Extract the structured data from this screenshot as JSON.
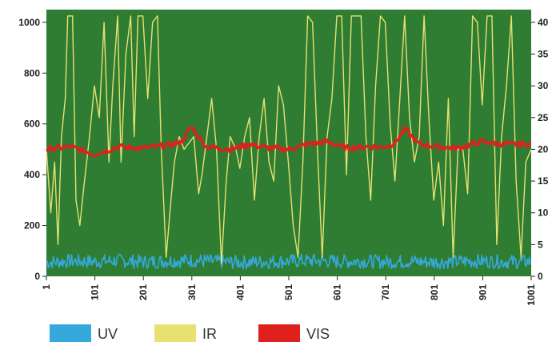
{
  "chart_data": {
    "type": "line",
    "title": "",
    "xlabel": "",
    "ylabel": "",
    "xlim": [
      1,
      1001
    ],
    "ylim_left": [
      0,
      1050
    ],
    "ylim_right": [
      0,
      42
    ],
    "left_ticks": [
      0,
      200,
      400,
      600,
      800,
      1000
    ],
    "right_ticks": [
      0,
      5,
      10,
      15,
      20,
      25,
      30,
      35,
      40
    ],
    "x_ticks": [
      "1",
      "101",
      "201",
      "301",
      "401",
      "501",
      "601",
      "701",
      "801",
      "901",
      "1001"
    ],
    "plot_background": "#2e7d32",
    "series": [
      {
        "name": "UV",
        "axis": "left",
        "color": "#35a9dc",
        "style": "noisy band",
        "x": [
          1,
          51,
          101,
          151,
          201,
          251,
          301,
          351,
          401,
          451,
          501,
          551,
          601,
          651,
          701,
          751,
          801,
          851,
          901,
          951,
          1001
        ],
        "values": [
          55,
          60,
          58,
          62,
          57,
          60,
          63,
          58,
          55,
          57,
          60,
          62,
          58,
          60,
          57,
          59,
          56,
          58,
          60,
          57,
          58
        ]
      },
      {
        "name": "IR",
        "axis": "right",
        "color": "#e8e070",
        "x": [
          1,
          10,
          18,
          25,
          32,
          40,
          45,
          55,
          62,
          70,
          78,
          90,
          100,
          110,
          120,
          130,
          138,
          148,
          155,
          165,
          175,
          182,
          190,
          200,
          210,
          220,
          230,
          238,
          248,
          258,
          265,
          275,
          285,
          295,
          305,
          315,
          322,
          332,
          342,
          352,
          362,
          372,
          380,
          392,
          400,
          410,
          420,
          430,
          440,
          450,
          460,
          470,
          480,
          490,
          500,
          510,
          520,
          530,
          540,
          550,
          560,
          570,
          580,
          590,
          600,
          610,
          620,
          630,
          640,
          650,
          660,
          670,
          680,
          690,
          700,
          710,
          720,
          730,
          740,
          750,
          760,
          770,
          780,
          790,
          800,
          810,
          820,
          830,
          840,
          850,
          860,
          870,
          880,
          890,
          900,
          910,
          920,
          930,
          940,
          950,
          960,
          970,
          980,
          990,
          1001
        ],
        "values": [
          20,
          10,
          18,
          5,
          22,
          28,
          41,
          41,
          12,
          8,
          14,
          22,
          30,
          25,
          40,
          18,
          30,
          41,
          18,
          35,
          41,
          22,
          41,
          41,
          28,
          40,
          41,
          20,
          3,
          12,
          18,
          22,
          20,
          21,
          22,
          13,
          16,
          22,
          28,
          20,
          2,
          15,
          22,
          20,
          17,
          22,
          25,
          12,
          22,
          28,
          18,
          15,
          30,
          27,
          18,
          8,
          3,
          18,
          41,
          40,
          20,
          3,
          22,
          28,
          41,
          41,
          16,
          41,
          41,
          41,
          22,
          12,
          30,
          41,
          40,
          24,
          15,
          28,
          41,
          25,
          18,
          22,
          41,
          25,
          12,
          18,
          8,
          28,
          3,
          20,
          20,
          13,
          41,
          40,
          27,
          41,
          41,
          5,
          22,
          30,
          41,
          15,
          3,
          18,
          20
        ]
      },
      {
        "name": "VIS",
        "axis": "left",
        "color": "#e0201c",
        "style": "thick noisy line",
        "x": [
          1,
          50,
          100,
          150,
          200,
          250,
          280,
          300,
          330,
          380,
          420,
          460,
          500,
          540,
          580,
          620,
          660,
          700,
          720,
          740,
          770,
          810,
          850,
          900,
          940,
          1001
        ],
        "values": [
          500,
          510,
          480,
          510,
          505,
          515,
          530,
          590,
          510,
          500,
          520,
          505,
          500,
          520,
          530,
          505,
          510,
          510,
          525,
          580,
          520,
          510,
          505,
          530,
          520,
          520
        ]
      }
    ],
    "legend": {
      "placement": "bottom-left",
      "entries": [
        {
          "label": "UV",
          "color": "#35a9dc"
        },
        {
          "label": "IR",
          "color": "#e8e070"
        },
        {
          "label": "VIS",
          "color": "#e0201c"
        }
      ]
    }
  }
}
